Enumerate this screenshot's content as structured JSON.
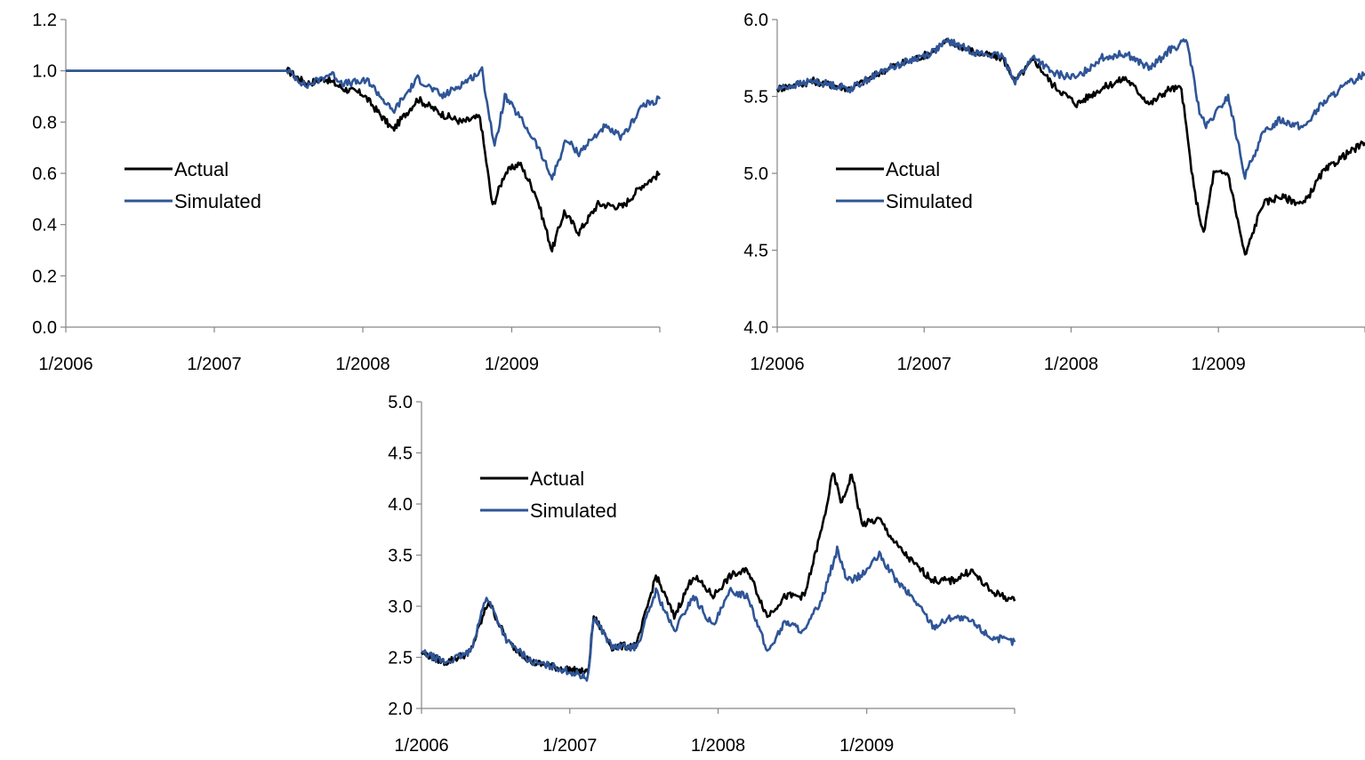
{
  "colors": {
    "actual": "#000000",
    "simulated": "#2f5597",
    "axis": "#868686"
  },
  "chart_data": [
    {
      "type": "line",
      "title": "",
      "xlabel": "",
      "ylabel": "",
      "ylim": [
        0.0,
        1.2
      ],
      "xlim": [
        "2006-01-01",
        "2009-12-31"
      ],
      "y_ticks": [
        "0.0",
        "0.2",
        "0.4",
        "0.6",
        "0.8",
        "1.0",
        "1.2"
      ],
      "x_ticks": [
        "1/2006",
        "1/2007",
        "1/2008",
        "1/2009"
      ],
      "legend": "inside-left",
      "grid": false,
      "series": [
        {
          "name": "Actual",
          "color": "#000000",
          "points": [
            [
              "2006-01-01",
              1.0
            ],
            [
              "2007-07-01",
              1.0
            ],
            [
              "2007-08-15",
              0.95
            ],
            [
              "2007-10-01",
              0.97
            ],
            [
              "2007-11-15",
              0.93
            ],
            [
              "2008-01-01",
              0.91
            ],
            [
              "2008-03-15",
              0.77
            ],
            [
              "2008-05-15",
              0.89
            ],
            [
              "2008-07-15",
              0.83
            ],
            [
              "2008-09-01",
              0.8
            ],
            [
              "2008-10-15",
              0.82
            ],
            [
              "2008-11-15",
              0.47
            ],
            [
              "2008-12-15",
              0.6
            ],
            [
              "2009-01-20",
              0.64
            ],
            [
              "2009-03-01",
              0.52
            ],
            [
              "2009-04-10",
              0.3
            ],
            [
              "2009-05-10",
              0.45
            ],
            [
              "2009-06-15",
              0.37
            ],
            [
              "2009-08-01",
              0.48
            ],
            [
              "2009-10-01",
              0.47
            ],
            [
              "2009-11-15",
              0.55
            ],
            [
              "2009-12-31",
              0.6
            ]
          ]
        },
        {
          "name": "Simulated",
          "color": "#2f5597",
          "points": [
            [
              "2006-01-01",
              1.0
            ],
            [
              "2007-07-01",
              1.0
            ],
            [
              "2007-08-15",
              0.94
            ],
            [
              "2007-10-15",
              0.99
            ],
            [
              "2007-11-15",
              0.95
            ],
            [
              "2008-01-15",
              0.96
            ],
            [
              "2008-03-15",
              0.84
            ],
            [
              "2008-05-15",
              0.97
            ],
            [
              "2008-07-15",
              0.9
            ],
            [
              "2008-09-01",
              0.95
            ],
            [
              "2008-10-20",
              1.0
            ],
            [
              "2008-11-20",
              0.7
            ],
            [
              "2008-12-15",
              0.9
            ],
            [
              "2009-01-20",
              0.82
            ],
            [
              "2009-03-01",
              0.72
            ],
            [
              "2009-04-10",
              0.58
            ],
            [
              "2009-05-15",
              0.73
            ],
            [
              "2009-06-15",
              0.68
            ],
            [
              "2009-08-15",
              0.78
            ],
            [
              "2009-10-01",
              0.74
            ],
            [
              "2009-11-15",
              0.86
            ],
            [
              "2009-12-31",
              0.89
            ]
          ]
        }
      ]
    },
    {
      "type": "line",
      "title": "",
      "xlabel": "",
      "ylabel": "",
      "ylim": [
        4.0,
        6.0
      ],
      "xlim": [
        "2006-01-01",
        "2009-12-31"
      ],
      "y_ticks": [
        "4.0",
        "4.5",
        "5.0",
        "5.5",
        "6.0"
      ],
      "x_ticks": [
        "1/2006",
        "1/2007",
        "1/2008",
        "1/2009"
      ],
      "legend": "inside-left",
      "grid": false,
      "series": [
        {
          "name": "Actual",
          "color": "#000000",
          "points": [
            [
              "2006-01-01",
              5.55
            ],
            [
              "2006-04-01",
              5.6
            ],
            [
              "2006-07-01",
              5.55
            ],
            [
              "2006-10-01",
              5.68
            ],
            [
              "2007-01-15",
              5.78
            ],
            [
              "2007-03-01",
              5.86
            ],
            [
              "2007-05-15",
              5.78
            ],
            [
              "2007-07-15",
              5.75
            ],
            [
              "2007-08-15",
              5.6
            ],
            [
              "2007-10-01",
              5.74
            ],
            [
              "2007-11-15",
              5.58
            ],
            [
              "2008-01-15",
              5.45
            ],
            [
              "2008-03-15",
              5.55
            ],
            [
              "2008-05-15",
              5.62
            ],
            [
              "2008-07-15",
              5.45
            ],
            [
              "2008-09-01",
              5.55
            ],
            [
              "2008-10-01",
              5.55
            ],
            [
              "2008-11-01",
              4.9
            ],
            [
              "2008-11-25",
              4.6
            ],
            [
              "2008-12-20",
              5.0
            ],
            [
              "2009-01-25",
              5.0
            ],
            [
              "2009-03-08",
              4.46
            ],
            [
              "2009-04-20",
              4.8
            ],
            [
              "2009-06-01",
              4.85
            ],
            [
              "2009-08-01",
              4.8
            ],
            [
              "2009-09-15",
              5.0
            ],
            [
              "2009-11-01",
              5.1
            ],
            [
              "2009-12-31",
              5.2
            ]
          ]
        },
        {
          "name": "Simulated",
          "color": "#2f5597",
          "points": [
            [
              "2006-01-01",
              5.55
            ],
            [
              "2006-04-01",
              5.6
            ],
            [
              "2006-07-01",
              5.55
            ],
            [
              "2006-10-01",
              5.68
            ],
            [
              "2007-01-15",
              5.78
            ],
            [
              "2007-03-01",
              5.86
            ],
            [
              "2007-05-15",
              5.78
            ],
            [
              "2007-07-15",
              5.76
            ],
            [
              "2007-08-15",
              5.6
            ],
            [
              "2007-10-01",
              5.76
            ],
            [
              "2007-11-15",
              5.65
            ],
            [
              "2008-01-15",
              5.62
            ],
            [
              "2008-03-15",
              5.75
            ],
            [
              "2008-05-15",
              5.78
            ],
            [
              "2008-07-15",
              5.68
            ],
            [
              "2008-09-01",
              5.8
            ],
            [
              "2008-10-15",
              5.86
            ],
            [
              "2008-11-15",
              5.4
            ],
            [
              "2008-12-01",
              5.3
            ],
            [
              "2009-01-25",
              5.5
            ],
            [
              "2009-03-08",
              4.98
            ],
            [
              "2009-04-20",
              5.25
            ],
            [
              "2009-06-01",
              5.35
            ],
            [
              "2009-08-01",
              5.3
            ],
            [
              "2009-09-15",
              5.45
            ],
            [
              "2009-11-01",
              5.55
            ],
            [
              "2009-12-31",
              5.65
            ]
          ]
        }
      ]
    },
    {
      "type": "line",
      "title": "",
      "xlabel": "",
      "ylabel": "",
      "ylim": [
        2.0,
        5.0
      ],
      "xlim": [
        "2006-01-01",
        "2009-12-31"
      ],
      "y_ticks": [
        "2.0",
        "2.5",
        "3.0",
        "3.5",
        "4.0",
        "4.5",
        "5.0"
      ],
      "x_ticks": [
        "1/2006",
        "1/2007",
        "1/2008",
        "1/2009"
      ],
      "legend": "inside-left",
      "grid": false,
      "series": [
        {
          "name": "Actual",
          "color": "#000000",
          "points": [
            [
              "2006-01-01",
              2.55
            ],
            [
              "2006-03-01",
              2.45
            ],
            [
              "2006-05-01",
              2.55
            ],
            [
              "2006-06-15",
              3.05
            ],
            [
              "2006-08-01",
              2.65
            ],
            [
              "2006-10-01",
              2.45
            ],
            [
              "2006-12-01",
              2.4
            ],
            [
              "2007-02-15",
              2.35
            ],
            [
              "2007-03-01",
              2.9
            ],
            [
              "2007-04-15",
              2.6
            ],
            [
              "2007-06-15",
              2.62
            ],
            [
              "2007-08-01",
              3.3
            ],
            [
              "2007-09-15",
              2.9
            ],
            [
              "2007-11-01",
              3.3
            ],
            [
              "2007-12-20",
              3.1
            ],
            [
              "2008-02-01",
              3.3
            ],
            [
              "2008-03-15",
              3.35
            ],
            [
              "2008-05-01",
              2.9
            ],
            [
              "2008-06-15",
              3.1
            ],
            [
              "2008-08-01",
              3.1
            ],
            [
              "2008-09-15",
              3.8
            ],
            [
              "2008-10-10",
              4.3
            ],
            [
              "2008-11-01",
              4.0
            ],
            [
              "2008-11-25",
              4.3
            ],
            [
              "2008-12-20",
              3.8
            ],
            [
              "2009-02-01",
              3.85
            ],
            [
              "2009-03-15",
              3.6
            ],
            [
              "2009-05-01",
              3.4
            ],
            [
              "2009-06-15",
              3.25
            ],
            [
              "2009-08-01",
              3.25
            ],
            [
              "2009-09-15",
              3.35
            ],
            [
              "2009-11-01",
              3.15
            ],
            [
              "2009-12-31",
              3.05
            ]
          ]
        },
        {
          "name": "Simulated",
          "color": "#2f5597",
          "points": [
            [
              "2006-01-01",
              2.55
            ],
            [
              "2006-03-01",
              2.45
            ],
            [
              "2006-05-01",
              2.55
            ],
            [
              "2006-06-10",
              3.1
            ],
            [
              "2006-08-01",
              2.65
            ],
            [
              "2006-10-01",
              2.45
            ],
            [
              "2006-12-01",
              2.4
            ],
            [
              "2007-02-15",
              2.3
            ],
            [
              "2007-03-01",
              2.9
            ],
            [
              "2007-04-15",
              2.6
            ],
            [
              "2007-06-15",
              2.6
            ],
            [
              "2007-08-01",
              3.15
            ],
            [
              "2007-09-15",
              2.75
            ],
            [
              "2007-11-01",
              3.1
            ],
            [
              "2007-12-20",
              2.8
            ],
            [
              "2008-02-01",
              3.15
            ],
            [
              "2008-03-15",
              3.1
            ],
            [
              "2008-05-01",
              2.55
            ],
            [
              "2008-06-15",
              2.85
            ],
            [
              "2008-08-01",
              2.75
            ],
            [
              "2008-09-15",
              3.1
            ],
            [
              "2008-10-20",
              3.55
            ],
            [
              "2008-11-15",
              3.25
            ],
            [
              "2008-12-20",
              3.3
            ],
            [
              "2009-02-01",
              3.5
            ],
            [
              "2009-03-15",
              3.25
            ],
            [
              "2009-05-01",
              3.05
            ],
            [
              "2009-06-15",
              2.8
            ],
            [
              "2009-08-01",
              2.9
            ],
            [
              "2009-09-15",
              2.85
            ],
            [
              "2009-11-01",
              2.7
            ],
            [
              "2009-12-31",
              2.65
            ]
          ]
        }
      ]
    }
  ]
}
